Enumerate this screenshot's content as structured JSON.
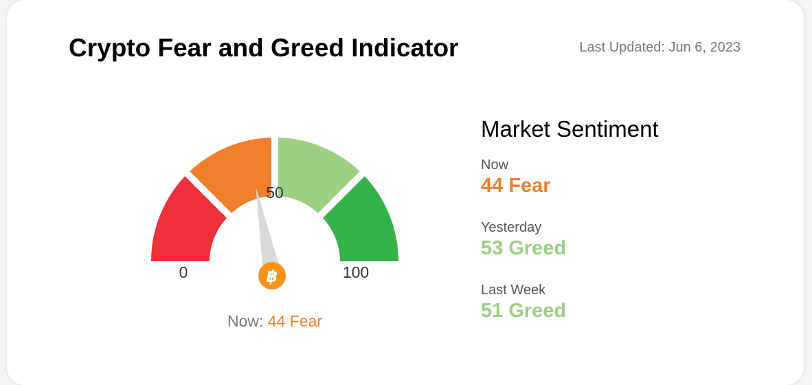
{
  "header": {
    "title": "Crypto Fear and Greed Indicator",
    "last_updated": "Last Updated: Jun 6, 2023"
  },
  "gauge": {
    "value": 44,
    "min_label": "0",
    "mid_label": "50",
    "max_label": "100",
    "icon": "bitcoin-icon",
    "needle_color": "#d9d9d9",
    "segments": [
      {
        "name": "extreme-fear",
        "color": "#f0303a"
      },
      {
        "name": "fear",
        "color": "#ef7f2b"
      },
      {
        "name": "greed",
        "color": "#9dcf82"
      },
      {
        "name": "extreme-greed",
        "color": "#36b24a"
      }
    ]
  },
  "now_caption": {
    "label": "Now:",
    "value": "44 Fear"
  },
  "sentiment": {
    "heading": "Market Sentiment",
    "rows": [
      {
        "label": "Now",
        "value": "44 Fear",
        "color": "#ef7f2b"
      },
      {
        "label": "Yesterday",
        "value": "53 Greed",
        "color": "#9dcf82"
      },
      {
        "label": "Last Week",
        "value": "51 Greed",
        "color": "#9dcf82"
      }
    ]
  }
}
